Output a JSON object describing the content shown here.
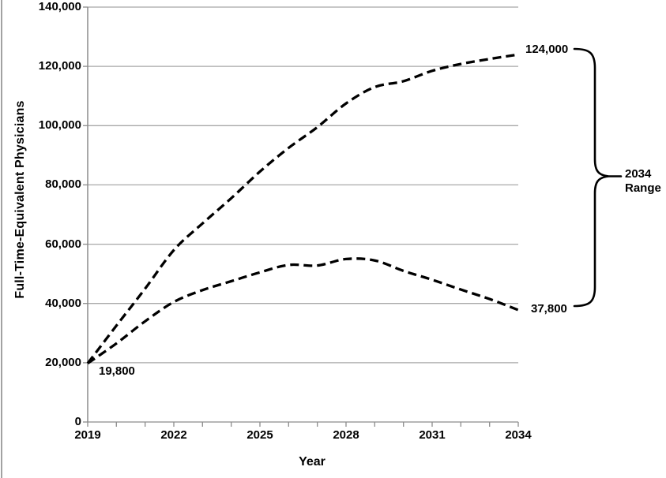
{
  "figure": {
    "background": "#ffffff",
    "left_border_color": "#a2a2a2"
  },
  "chart_data": {
    "type": "line",
    "title": "",
    "xlabel": "Year",
    "ylabel": "Full-Time-Equivalent Physicians",
    "xlim": [
      2019,
      2034
    ],
    "ylim": [
      0,
      140000
    ],
    "grid": "horizontal",
    "gridline_color": "#a8a8a8",
    "axis_color": "#8c8c8c",
    "line_color": "#000000",
    "line_style": "dashed",
    "legend": "none",
    "x": [
      2019,
      2020,
      2021,
      2022,
      2023,
      2024,
      2025,
      2026,
      2027,
      2028,
      2029,
      2030,
      2031,
      2032,
      2033,
      2034
    ],
    "x_tick_years": [
      2019,
      2022,
      2025,
      2028,
      2031,
      2034
    ],
    "x_tick_labels": [
      "2019",
      "2022",
      "2025",
      "2028",
      "2031",
      "2034"
    ],
    "y_ticks": [
      0,
      20000,
      40000,
      60000,
      80000,
      100000,
      120000,
      140000
    ],
    "y_tick_labels": [
      "140,000",
      "120,000",
      "100,000",
      "80,000",
      "60,000",
      "40,000",
      "20,000",
      "0"
    ],
    "series": [
      {
        "name": "high-projection",
        "values": [
          19800,
          32500,
          45000,
          58000,
          67000,
          75500,
          84500,
          92500,
          99500,
          107500,
          113000,
          115000,
          118500,
          120800,
          122500,
          124000
        ]
      },
      {
        "name": "low-projection",
        "values": [
          19800,
          26500,
          34000,
          40500,
          44500,
          47500,
          50500,
          53000,
          52800,
          55000,
          54500,
          51000,
          48000,
          44700,
          41500,
          37800
        ]
      }
    ],
    "annotations": {
      "start_label": "19,800",
      "high_end_label": "124,000",
      "low_end_label": "37,800",
      "brace_label_line1": "2034",
      "brace_label_line2": "Range"
    }
  }
}
